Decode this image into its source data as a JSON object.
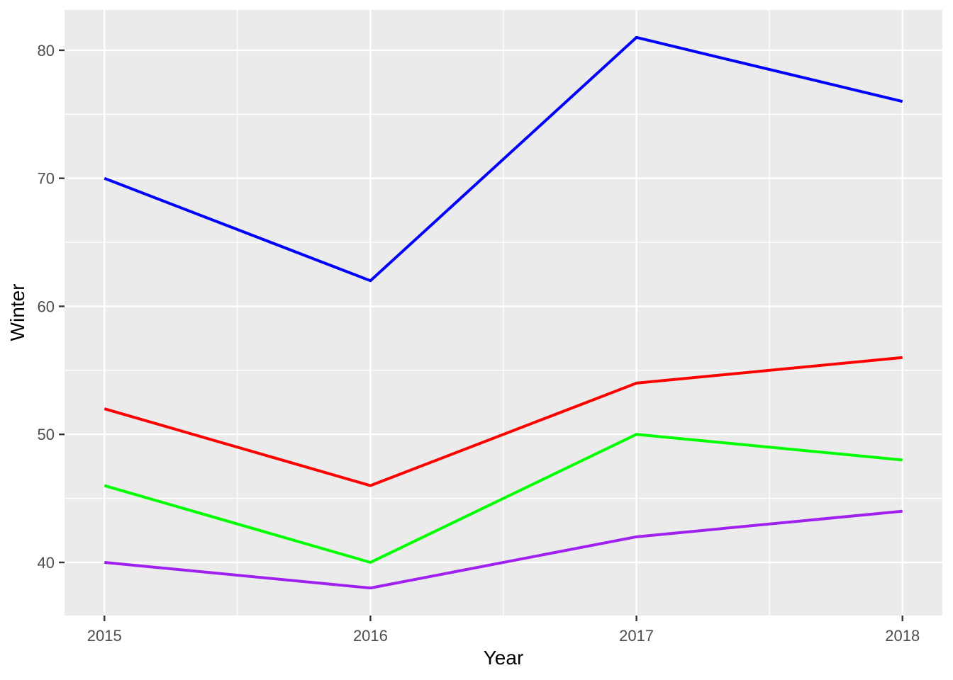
{
  "chart_data": {
    "type": "line",
    "title": "",
    "xlabel": "Year",
    "ylabel": "Winter",
    "x": [
      2015,
      2016,
      2017,
      2018
    ],
    "series": [
      {
        "name": "blue-line",
        "color": "#0000FF",
        "values": [
          70,
          62,
          81,
          76
        ]
      },
      {
        "name": "red-line",
        "color": "#FF0000",
        "values": [
          52,
          46,
          54,
          56
        ]
      },
      {
        "name": "green-line",
        "color": "#00FF00",
        "values": [
          46,
          40,
          50,
          48
        ]
      },
      {
        "name": "purple-line",
        "color": "#A020F0",
        "values": [
          40,
          38,
          42,
          44
        ]
      }
    ],
    "x_tick_labels": [
      "2015",
      "2016",
      "2017",
      "2018"
    ],
    "y_tick_labels": [
      "40",
      "50",
      "60",
      "70",
      "80"
    ],
    "x_major": [
      2015,
      2016,
      2017,
      2018
    ],
    "x_minor": [
      2015.5,
      2016.5,
      2017.5
    ],
    "y_major": [
      40,
      50,
      60,
      70,
      80
    ],
    "y_minor": [
      45,
      55,
      65,
      75
    ],
    "xlim": [
      2014.85,
      2018.15
    ],
    "ylim": [
      35.85,
      83.15
    ],
    "grid": "on",
    "legend_position": "none",
    "panel_bg": "#EBEBEB",
    "grid_color": "#FFFFFF",
    "tick_label_color": "#4D4D4D",
    "axis_title_color": "#000000"
  }
}
